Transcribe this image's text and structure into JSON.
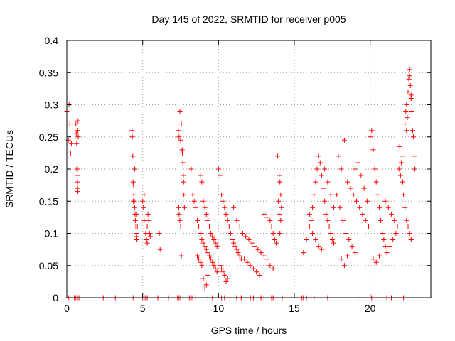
{
  "chart_data": {
    "type": "scatter",
    "title": "Day 145 of 2022, SRMTID for receiver p005",
    "xlabel": "GPS time / hours",
    "ylabel": "SRMTID / TECUs",
    "xlim": [
      0,
      24
    ],
    "ylim": [
      0,
      0.4
    ],
    "grid": true,
    "marker": "+",
    "color": "#ff0000",
    "x_ticks": [
      0,
      5,
      10,
      15,
      20
    ],
    "x_tick_labels": [
      "0",
      "5",
      "10",
      "15",
      "20"
    ],
    "y_ticks": [
      0,
      0.05,
      0.1,
      0.15,
      0.2,
      0.25,
      0.3,
      0.35,
      0.4
    ],
    "y_tick_labels": [
      "0",
      "0.05",
      "0.1",
      "0.15",
      "0.2",
      "0.25",
      "0.3",
      "0.35",
      "0.4"
    ],
    "series": [
      {
        "name": "SRMTID",
        "points": [
          [
            0.0,
            0.29
          ],
          [
            0.1,
            0.245
          ],
          [
            0.15,
            0.3
          ],
          [
            0.2,
            0.27
          ],
          [
            0.25,
            0.225
          ],
          [
            0.3,
            0.24
          ],
          [
            0.6,
            0.27
          ],
          [
            0.62,
            0.255
          ],
          [
            0.65,
            0.24
          ],
          [
            0.66,
            0.2
          ],
          [
            0.68,
            0.19
          ],
          [
            0.7,
            0.18
          ],
          [
            0.71,
            0.17
          ],
          [
            0.72,
            0.165
          ],
          [
            0.73,
            0.26
          ],
          [
            0.74,
            0.275
          ],
          [
            0.75,
            0.25
          ],
          [
            0.7,
            0.2
          ],
          [
            4.3,
            0.26
          ],
          [
            4.32,
            0.25
          ],
          [
            4.35,
            0.22
          ],
          [
            4.37,
            0.18
          ],
          [
            4.4,
            0.175
          ],
          [
            4.42,
            0.16
          ],
          [
            4.45,
            0.15
          ],
          [
            4.47,
            0.14
          ],
          [
            4.5,
            0.13
          ],
          [
            4.52,
            0.12
          ],
          [
            4.55,
            0.11
          ],
          [
            4.57,
            0.1
          ],
          [
            4.6,
            0.095
          ],
          [
            4.62,
            0.09
          ],
          [
            4.48,
            0.2
          ],
          [
            4.38,
            0.15
          ],
          [
            4.6,
            0.13
          ],
          [
            4.65,
            0.11
          ],
          [
            5.0,
            0.15
          ],
          [
            5.05,
            0.14
          ],
          [
            5.1,
            0.12
          ],
          [
            5.2,
            0.1
          ],
          [
            5.25,
            0.09
          ],
          [
            5.3,
            0.085
          ],
          [
            5.35,
            0.13
          ],
          [
            5.4,
            0.12
          ],
          [
            5.45,
            0.1
          ],
          [
            5.5,
            0.095
          ],
          [
            5.1,
            0.16
          ],
          [
            5.3,
            0.11
          ],
          [
            6.1,
            0.1
          ],
          [
            6.15,
            0.075
          ],
          [
            7.35,
            0.26
          ],
          [
            7.4,
            0.25
          ],
          [
            7.45,
            0.29
          ],
          [
            7.5,
            0.245
          ],
          [
            7.55,
            0.27
          ],
          [
            7.6,
            0.23
          ],
          [
            7.62,
            0.225
          ],
          [
            7.65,
            0.21
          ],
          [
            7.68,
            0.19
          ],
          [
            7.7,
            0.18
          ],
          [
            7.72,
            0.16
          ],
          [
            7.75,
            0.14
          ],
          [
            7.4,
            0.13
          ],
          [
            7.45,
            0.12
          ],
          [
            7.5,
            0.11
          ],
          [
            7.55,
            0.065
          ],
          [
            7.38,
            0.14
          ],
          [
            8.2,
            0.2
          ],
          [
            8.3,
            0.16
          ],
          [
            8.4,
            0.15
          ],
          [
            8.5,
            0.14
          ],
          [
            8.6,
            0.12
          ],
          [
            8.7,
            0.11
          ],
          [
            8.8,
            0.1
          ],
          [
            8.9,
            0.09
          ],
          [
            9.0,
            0.085
          ],
          [
            9.1,
            0.08
          ],
          [
            9.2,
            0.075
          ],
          [
            9.3,
            0.07
          ],
          [
            9.4,
            0.065
          ],
          [
            9.5,
            0.06
          ],
          [
            9.6,
            0.055
          ],
          [
            9.7,
            0.05
          ],
          [
            9.8,
            0.045
          ],
          [
            9.9,
            0.04
          ],
          [
            9.0,
            0.03
          ],
          [
            9.1,
            0.015
          ],
          [
            9.2,
            0.02
          ],
          [
            9.3,
            0.035
          ],
          [
            8.8,
            0.19
          ],
          [
            8.9,
            0.18
          ],
          [
            9.0,
            0.15
          ],
          [
            9.1,
            0.14
          ],
          [
            9.2,
            0.13
          ],
          [
            9.3,
            0.12
          ],
          [
            9.4,
            0.11
          ],
          [
            9.5,
            0.1
          ],
          [
            9.6,
            0.095
          ],
          [
            9.7,
            0.09
          ],
          [
            9.8,
            0.085
          ],
          [
            9.9,
            0.08
          ],
          [
            8.6,
            0.065
          ],
          [
            8.7,
            0.06
          ],
          [
            8.8,
            0.055
          ],
          [
            8.9,
            0.05
          ],
          [
            10.0,
            0.2
          ],
          [
            10.1,
            0.19
          ],
          [
            10.2,
            0.16
          ],
          [
            10.3,
            0.15
          ],
          [
            10.4,
            0.14
          ],
          [
            10.5,
            0.13
          ],
          [
            10.6,
            0.12
          ],
          [
            10.7,
            0.11
          ],
          [
            10.8,
            0.1
          ],
          [
            10.9,
            0.09
          ],
          [
            11.0,
            0.085
          ],
          [
            11.1,
            0.08
          ],
          [
            11.2,
            0.075
          ],
          [
            11.3,
            0.07
          ],
          [
            11.4,
            0.065
          ],
          [
            11.5,
            0.06
          ],
          [
            10.1,
            0.05
          ],
          [
            10.2,
            0.045
          ],
          [
            10.3,
            0.04
          ],
          [
            10.4,
            0.035
          ],
          [
            10.5,
            0.025
          ],
          [
            10.6,
            0.03
          ],
          [
            11.0,
            0.14
          ],
          [
            11.2,
            0.12
          ],
          [
            11.4,
            0.11
          ],
          [
            11.6,
            0.1
          ],
          [
            11.8,
            0.095
          ],
          [
            12.0,
            0.09
          ],
          [
            12.2,
            0.085
          ],
          [
            12.4,
            0.08
          ],
          [
            12.6,
            0.075
          ],
          [
            12.8,
            0.07
          ],
          [
            13.0,
            0.065
          ],
          [
            13.2,
            0.06
          ],
          [
            13.4,
            0.05
          ],
          [
            13.6,
            0.045
          ],
          [
            11.7,
            0.06
          ],
          [
            11.9,
            0.055
          ],
          [
            12.1,
            0.05
          ],
          [
            12.3,
            0.045
          ],
          [
            12.5,
            0.04
          ],
          [
            12.7,
            0.035
          ],
          [
            13.0,
            0.13
          ],
          [
            13.2,
            0.125
          ],
          [
            13.4,
            0.12
          ],
          [
            13.5,
            0.11
          ],
          [
            13.6,
            0.1
          ],
          [
            13.7,
            0.09
          ],
          [
            13.8,
            0.085
          ],
          [
            13.9,
            0.22
          ],
          [
            14.0,
            0.19
          ],
          [
            14.05,
            0.18
          ],
          [
            14.1,
            0.16
          ],
          [
            14.15,
            0.14
          ],
          [
            13.95,
            0.15
          ],
          [
            14.0,
            0.13
          ],
          [
            14.1,
            0.12
          ],
          [
            14.05,
            0.1
          ],
          [
            15.6,
            0.07
          ],
          [
            15.8,
            0.09
          ],
          [
            16.0,
            0.11
          ],
          [
            16.1,
            0.12
          ],
          [
            16.2,
            0.14
          ],
          [
            16.3,
            0.16
          ],
          [
            16.4,
            0.18
          ],
          [
            16.5,
            0.2
          ],
          [
            16.6,
            0.22
          ],
          [
            16.7,
            0.21
          ],
          [
            16.8,
            0.19
          ],
          [
            16.9,
            0.17
          ],
          [
            17.0,
            0.15
          ],
          [
            17.1,
            0.13
          ],
          [
            17.2,
            0.12
          ],
          [
            17.3,
            0.11
          ],
          [
            17.4,
            0.1
          ],
          [
            17.5,
            0.09
          ],
          [
            17.6,
            0.085
          ],
          [
            16.0,
            0.13
          ],
          [
            16.2,
            0.1
          ],
          [
            16.4,
            0.09
          ],
          [
            16.6,
            0.08
          ],
          [
            16.8,
            0.075
          ],
          [
            17.0,
            0.2
          ],
          [
            17.2,
            0.18
          ],
          [
            17.4,
            0.16
          ],
          [
            17.6,
            0.14
          ],
          [
            17.8,
            0.16
          ],
          [
            18.0,
            0.14
          ],
          [
            18.2,
            0.12
          ],
          [
            18.4,
            0.1
          ],
          [
            18.6,
            0.09
          ],
          [
            18.8,
            0.08
          ],
          [
            19.0,
            0.07
          ],
          [
            18.1,
            0.06
          ],
          [
            18.3,
            0.05
          ],
          [
            18.5,
            0.065
          ],
          [
            17.9,
            0.22
          ],
          [
            18.1,
            0.2
          ],
          [
            18.3,
            0.245
          ],
          [
            18.5,
            0.18
          ],
          [
            18.7,
            0.17
          ],
          [
            18.9,
            0.16
          ],
          [
            19.1,
            0.15
          ],
          [
            19.3,
            0.14
          ],
          [
            19.5,
            0.13
          ],
          [
            19.7,
            0.12
          ],
          [
            19.9,
            0.11
          ],
          [
            19.0,
            0.2
          ],
          [
            19.2,
            0.21
          ],
          [
            19.4,
            0.19
          ],
          [
            19.6,
            0.17
          ],
          [
            19.8,
            0.15
          ],
          [
            20.0,
            0.25
          ],
          [
            20.1,
            0.26
          ],
          [
            20.2,
            0.23
          ],
          [
            20.3,
            0.2
          ],
          [
            20.4,
            0.18
          ],
          [
            20.5,
            0.16
          ],
          [
            20.6,
            0.14
          ],
          [
            20.7,
            0.12
          ],
          [
            20.8,
            0.1
          ],
          [
            20.9,
            0.09
          ],
          [
            21.0,
            0.08
          ],
          [
            20.2,
            0.06
          ],
          [
            20.4,
            0.055
          ],
          [
            20.6,
            0.065
          ],
          [
            21.0,
            0.15
          ],
          [
            21.2,
            0.14
          ],
          [
            21.4,
            0.13
          ],
          [
            21.6,
            0.12
          ],
          [
            21.8,
            0.11
          ],
          [
            21.1,
            0.07
          ],
          [
            21.3,
            0.08
          ],
          [
            21.5,
            0.09
          ],
          [
            21.7,
            0.1
          ],
          [
            21.9,
            0.2
          ],
          [
            22.0,
            0.19
          ],
          [
            22.1,
            0.22
          ],
          [
            21.95,
            0.235
          ],
          [
            22.05,
            0.21
          ],
          [
            22.15,
            0.18
          ],
          [
            22.2,
            0.16
          ],
          [
            22.3,
            0.14
          ],
          [
            22.4,
            0.12
          ],
          [
            22.5,
            0.11
          ],
          [
            22.6,
            0.1
          ],
          [
            22.7,
            0.09
          ],
          [
            22.3,
            0.27
          ],
          [
            22.35,
            0.29
          ],
          [
            22.4,
            0.3
          ],
          [
            22.45,
            0.28
          ],
          [
            22.5,
            0.32
          ],
          [
            22.55,
            0.34
          ],
          [
            22.6,
            0.355
          ],
          [
            22.65,
            0.33
          ],
          [
            22.7,
            0.31
          ],
          [
            22.75,
            0.29
          ],
          [
            22.8,
            0.26
          ],
          [
            22.85,
            0.25
          ],
          [
            22.9,
            0.22
          ],
          [
            22.95,
            0.2
          ],
          [
            22.4,
            0.26
          ],
          [
            22.6,
            0.345
          ],
          [
            22.7,
            0.315
          ],
          [
            0.1,
            0
          ],
          [
            0.2,
            0
          ],
          [
            0.5,
            0
          ],
          [
            0.6,
            0
          ],
          [
            0.7,
            0
          ],
          [
            0.8,
            0
          ],
          [
            2.4,
            0
          ],
          [
            3.2,
            0
          ],
          [
            4.3,
            0
          ],
          [
            4.4,
            0
          ],
          [
            4.9,
            0
          ],
          [
            5.0,
            0
          ],
          [
            5.1,
            0
          ],
          [
            5.2,
            0
          ],
          [
            5.3,
            0
          ],
          [
            6.0,
            0
          ],
          [
            6.7,
            0
          ],
          [
            7.3,
            0
          ],
          [
            7.4,
            0
          ],
          [
            7.5,
            0
          ],
          [
            8.0,
            0
          ],
          [
            8.1,
            0
          ],
          [
            8.2,
            0
          ],
          [
            8.3,
            0
          ],
          [
            8.5,
            0
          ],
          [
            9.3,
            0
          ],
          [
            9.6,
            0
          ],
          [
            10.2,
            0
          ],
          [
            10.4,
            0
          ],
          [
            11.2,
            0
          ],
          [
            11.5,
            0
          ],
          [
            12.1,
            0
          ],
          [
            12.3,
            0
          ],
          [
            12.8,
            0
          ],
          [
            13.0,
            0
          ],
          [
            13.5,
            0
          ],
          [
            13.6,
            0
          ],
          [
            14.2,
            0
          ],
          [
            15.5,
            0
          ],
          [
            15.6,
            0
          ],
          [
            15.8,
            0
          ],
          [
            16.1,
            0
          ],
          [
            16.3,
            0
          ],
          [
            17.2,
            0
          ],
          [
            19.2,
            0
          ],
          [
            20.1,
            0
          ],
          [
            21.1,
            0
          ],
          [
            21.4,
            0
          ],
          [
            22.2,
            0
          ]
        ]
      }
    ]
  }
}
